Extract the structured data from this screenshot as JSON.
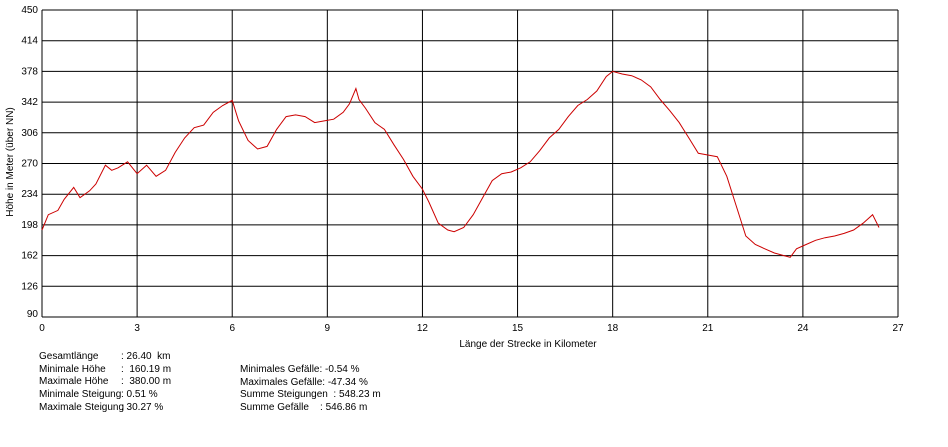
{
  "chart_data": {
    "type": "line",
    "xlabel": "Länge der Strecke in Kilometer",
    "ylabel": "Höhe in Meter (über NN)",
    "xlim": [
      0,
      27
    ],
    "ylim": [
      90,
      450
    ],
    "x_ticks": [
      "0",
      "3",
      "6",
      "9",
      "12",
      "15",
      "18",
      "21",
      "24",
      "27"
    ],
    "y_ticks": [
      "450",
      "414",
      "378",
      "342",
      "306",
      "270",
      "234",
      "198",
      "162",
      "126",
      "90"
    ],
    "grid": true,
    "line_color": "#cc0000",
    "series": [
      {
        "x": [
          0.0,
          0.2,
          0.5,
          0.7,
          1.0,
          1.2,
          1.5,
          1.7,
          2.0,
          2.2,
          2.4,
          2.7,
          3.0,
          3.3,
          3.6,
          3.9,
          4.2,
          4.5,
          4.8,
          5.1,
          5.4,
          5.7,
          6.0,
          6.2,
          6.5,
          6.8,
          7.1,
          7.4,
          7.7,
          8.0,
          8.3,
          8.6,
          8.9,
          9.2,
          9.5,
          9.7,
          9.9,
          10.0,
          10.2,
          10.5,
          10.8,
          11.1,
          11.4,
          11.7,
          12.0,
          12.2,
          12.5,
          12.8,
          13.0,
          13.3,
          13.6,
          13.9,
          14.2,
          14.5,
          14.8,
          15.1,
          15.4,
          15.7,
          16.0,
          16.3,
          16.6,
          16.9,
          17.2,
          17.5,
          17.8,
          18.0,
          18.3,
          18.6,
          18.9,
          19.2,
          19.5,
          19.8,
          20.1,
          20.4,
          20.7,
          21.0,
          21.3,
          21.6,
          21.9,
          22.2,
          22.5,
          22.8,
          23.1,
          23.4,
          23.6,
          23.8,
          24.1,
          24.4,
          24.7,
          25.0,
          25.3,
          25.6,
          25.9,
          26.2,
          26.4
        ],
        "y": [
          192,
          210,
          215,
          228,
          242,
          230,
          238,
          246,
          268,
          262,
          265,
          272,
          258,
          268,
          255,
          262,
          283,
          300,
          312,
          315,
          330,
          338,
          344,
          320,
          297,
          287,
          290,
          310,
          325,
          327,
          325,
          318,
          320,
          322,
          330,
          340,
          358,
          345,
          335,
          318,
          310,
          292,
          275,
          255,
          240,
          225,
          200,
          192,
          190,
          195,
          210,
          230,
          250,
          258,
          260,
          265,
          272,
          285,
          300,
          310,
          325,
          338,
          345,
          355,
          372,
          378,
          375,
          373,
          368,
          360,
          345,
          332,
          318,
          300,
          282,
          280,
          278,
          255,
          220,
          185,
          175,
          170,
          165,
          162,
          160,
          170,
          175,
          180,
          183,
          185,
          188,
          192,
          200,
          210,
          195
        ]
      }
    ]
  },
  "stats_left": [
    {
      "label": "Gesamtlänge",
      "value": ": 26.40  km"
    },
    {
      "label": "Minimale Höhe",
      "value": ":  160.19 m"
    },
    {
      "label": "Maximale Höhe",
      "value": ":  380.00 m"
    },
    {
      "label": "Minimale Steigung",
      "value": ": 0.51 %"
    },
    {
      "label": "Maximale Steigung",
      "value": ": 30.27 %"
    }
  ],
  "stats_right": [
    {
      "label": "Minimales Gefälle",
      "value": ": -0.54 %"
    },
    {
      "label": "Maximales Gefälle",
      "value": ": -47.34 %"
    },
    {
      "label": "Summe Steigungen",
      "value": "  : 548.23 m"
    },
    {
      "label": "Summe Gefälle",
      "value": "    : 546.86 m"
    }
  ]
}
